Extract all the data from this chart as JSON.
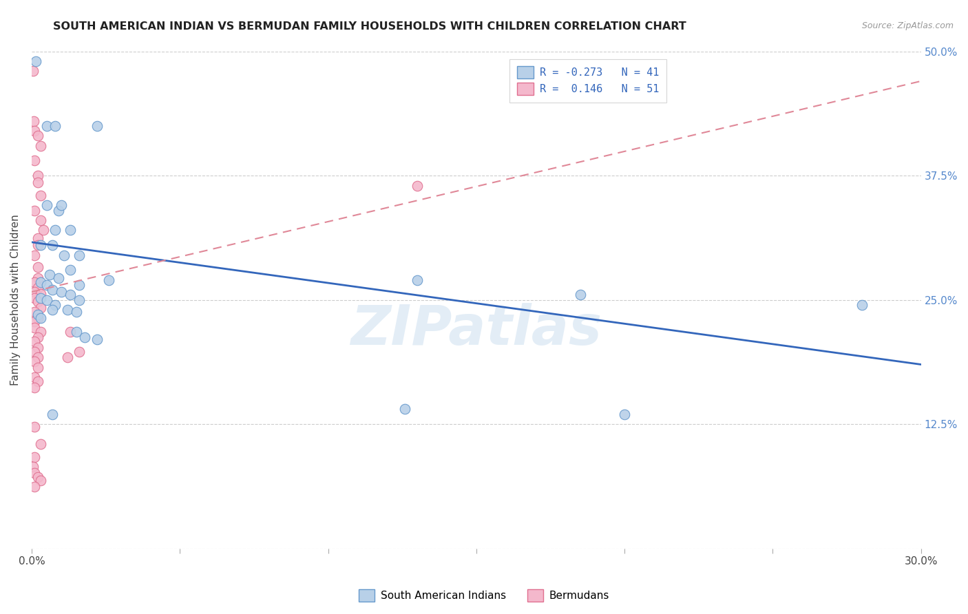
{
  "title": "SOUTH AMERICAN INDIAN VS BERMUDAN FAMILY HOUSEHOLDS WITH CHILDREN CORRELATION CHART",
  "source": "Source: ZipAtlas.com",
  "ylabel": "Family Households with Children",
  "xlim": [
    0.0,
    0.3
  ],
  "ylim": [
    0.0,
    0.5
  ],
  "legend_label_blue": "South American Indians",
  "legend_label_pink": "Bermudans",
  "legend_text_blue": "R = -0.273   N = 41",
  "legend_text_pink": "R =  0.146   N = 51",
  "blue_fill": "#b8d0e8",
  "pink_fill": "#f4b8cc",
  "blue_edge": "#6699cc",
  "pink_edge": "#e07090",
  "blue_line_color": "#3366bb",
  "pink_line_color": "#e08898",
  "watermark": "ZIPatlas",
  "background_color": "#ffffff",
  "grid_color": "#cccccc",
  "right_tick_color": "#5588cc",
  "blue_line": {
    "x0": 0.0,
    "y0": 0.308,
    "x1": 0.3,
    "y1": 0.185
  },
  "pink_line": {
    "x0": 0.0,
    "y0": 0.258,
    "x1": 0.3,
    "y1": 0.47
  },
  "blue_scatter": [
    [
      0.0015,
      0.49
    ],
    [
      0.005,
      0.425
    ],
    [
      0.008,
      0.425
    ],
    [
      0.022,
      0.425
    ],
    [
      0.005,
      0.345
    ],
    [
      0.009,
      0.34
    ],
    [
      0.01,
      0.345
    ],
    [
      0.008,
      0.32
    ],
    [
      0.013,
      0.32
    ],
    [
      0.003,
      0.305
    ],
    [
      0.007,
      0.305
    ],
    [
      0.011,
      0.295
    ],
    [
      0.016,
      0.295
    ],
    [
      0.013,
      0.28
    ],
    [
      0.006,
      0.275
    ],
    [
      0.009,
      0.272
    ],
    [
      0.003,
      0.268
    ],
    [
      0.005,
      0.265
    ],
    [
      0.007,
      0.26
    ],
    [
      0.01,
      0.258
    ],
    [
      0.013,
      0.255
    ],
    [
      0.003,
      0.252
    ],
    [
      0.005,
      0.25
    ],
    [
      0.008,
      0.245
    ],
    [
      0.007,
      0.24
    ],
    [
      0.012,
      0.24
    ],
    [
      0.015,
      0.238
    ],
    [
      0.002,
      0.235
    ],
    [
      0.003,
      0.232
    ],
    [
      0.016,
      0.265
    ],
    [
      0.016,
      0.25
    ],
    [
      0.026,
      0.27
    ],
    [
      0.13,
      0.27
    ],
    [
      0.185,
      0.255
    ],
    [
      0.28,
      0.245
    ],
    [
      0.015,
      0.218
    ],
    [
      0.018,
      0.212
    ],
    [
      0.022,
      0.21
    ],
    [
      0.007,
      0.135
    ],
    [
      0.126,
      0.14
    ],
    [
      0.2,
      0.135
    ]
  ],
  "pink_scatter": [
    [
      0.0005,
      0.48
    ],
    [
      0.0008,
      0.43
    ],
    [
      0.001,
      0.42
    ],
    [
      0.002,
      0.415
    ],
    [
      0.003,
      0.405
    ],
    [
      0.001,
      0.39
    ],
    [
      0.002,
      0.375
    ],
    [
      0.002,
      0.368
    ],
    [
      0.003,
      0.355
    ],
    [
      0.001,
      0.34
    ],
    [
      0.003,
      0.33
    ],
    [
      0.004,
      0.32
    ],
    [
      0.002,
      0.312
    ],
    [
      0.002,
      0.305
    ],
    [
      0.001,
      0.295
    ],
    [
      0.002,
      0.283
    ],
    [
      0.002,
      0.272
    ],
    [
      0.001,
      0.268
    ],
    [
      0.002,
      0.262
    ],
    [
      0.001,
      0.258
    ],
    [
      0.003,
      0.256
    ],
    [
      0.001,
      0.252
    ],
    [
      0.002,
      0.248
    ],
    [
      0.003,
      0.242
    ],
    [
      0.001,
      0.238
    ],
    [
      0.002,
      0.232
    ],
    [
      0.001,
      0.228
    ],
    [
      0.001,
      0.222
    ],
    [
      0.003,
      0.218
    ],
    [
      0.002,
      0.212
    ],
    [
      0.001,
      0.208
    ],
    [
      0.002,
      0.202
    ],
    [
      0.001,
      0.198
    ],
    [
      0.002,
      0.192
    ],
    [
      0.001,
      0.188
    ],
    [
      0.002,
      0.182
    ],
    [
      0.012,
      0.192
    ],
    [
      0.016,
      0.198
    ],
    [
      0.001,
      0.172
    ],
    [
      0.002,
      0.168
    ],
    [
      0.001,
      0.162
    ],
    [
      0.013,
      0.218
    ],
    [
      0.13,
      0.365
    ],
    [
      0.001,
      0.122
    ],
    [
      0.003,
      0.105
    ],
    [
      0.001,
      0.092
    ],
    [
      0.0005,
      0.082
    ],
    [
      0.001,
      0.076
    ],
    [
      0.002,
      0.072
    ],
    [
      0.003,
      0.068
    ],
    [
      0.001,
      0.062
    ]
  ]
}
